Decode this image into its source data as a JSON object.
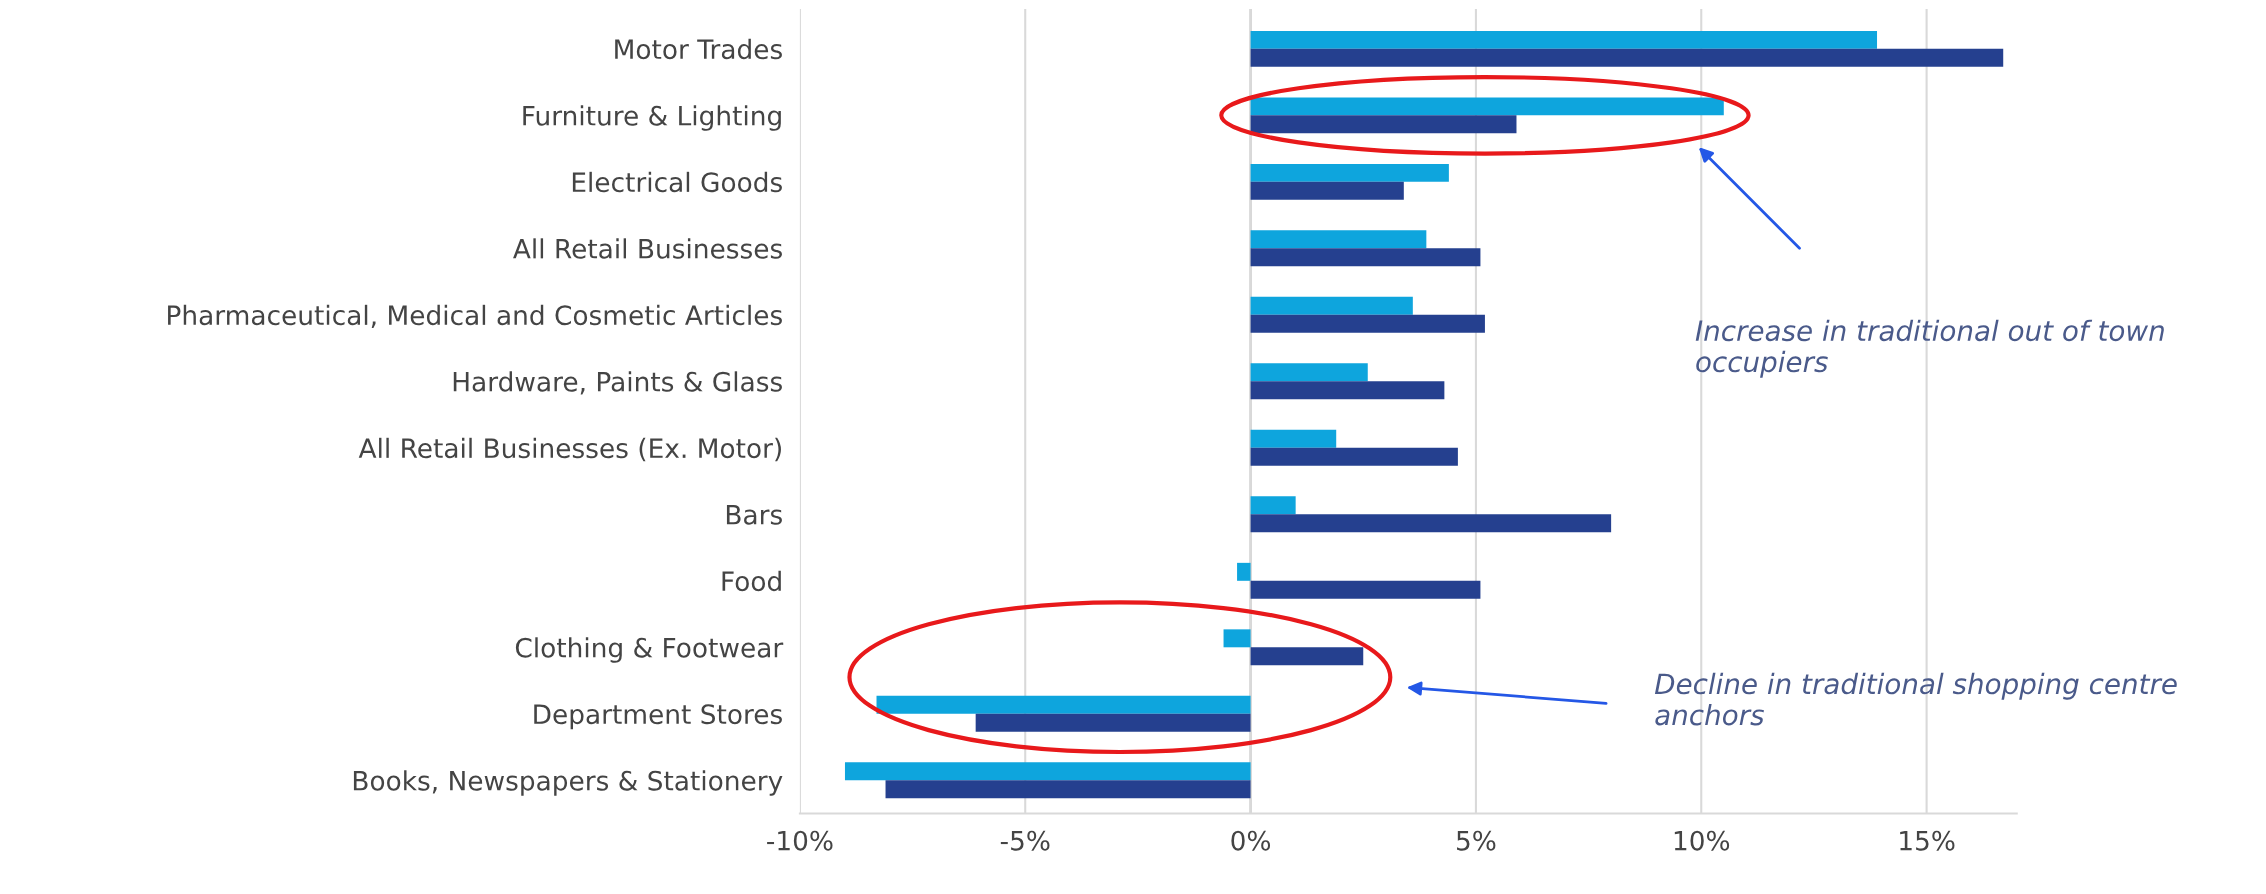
{
  "chart_data": {
    "type": "bar",
    "orientation": "horizontal",
    "categories": [
      "Motor Trades",
      "Furniture & Lighting",
      "Electrical Goods",
      "All Retail Businesses",
      "Pharmaceutical, Medical and Cosmetic Articles",
      "Hardware, Paints & Glass",
      "All Retail Businesses (Ex. Motor)",
      "Bars",
      "Food",
      "Clothing & Footwear",
      "Department Stores",
      "Books, Newspapers & Stationery"
    ],
    "series": [
      {
        "color": "#0ea5dd",
        "values": [
          13.9,
          10.5,
          4.4,
          3.9,
          3.6,
          2.6,
          1.9,
          1.0,
          -0.3,
          -0.6,
          -8.3,
          -9.0
        ]
      },
      {
        "color": "#25408f",
        "values": [
          16.7,
          5.9,
          3.4,
          5.1,
          5.2,
          4.3,
          4.6,
          8.0,
          5.1,
          2.5,
          -6.1,
          -8.1
        ]
      }
    ],
    "xlim": [
      -10,
      17
    ],
    "xticks": [
      {
        "value": -10,
        "label": "-10%"
      },
      {
        "value": -5,
        "label": "-5%"
      },
      {
        "value": 0,
        "label": "0%"
      },
      {
        "value": 5,
        "label": "5%"
      },
      {
        "value": 10,
        "label": "10%"
      },
      {
        "value": 15,
        "label": "15%"
      }
    ],
    "grid": "x",
    "annotations": [
      "Increase in traditional out of town occupiers",
      "Decline in traditional shopping centre anchors"
    ]
  }
}
